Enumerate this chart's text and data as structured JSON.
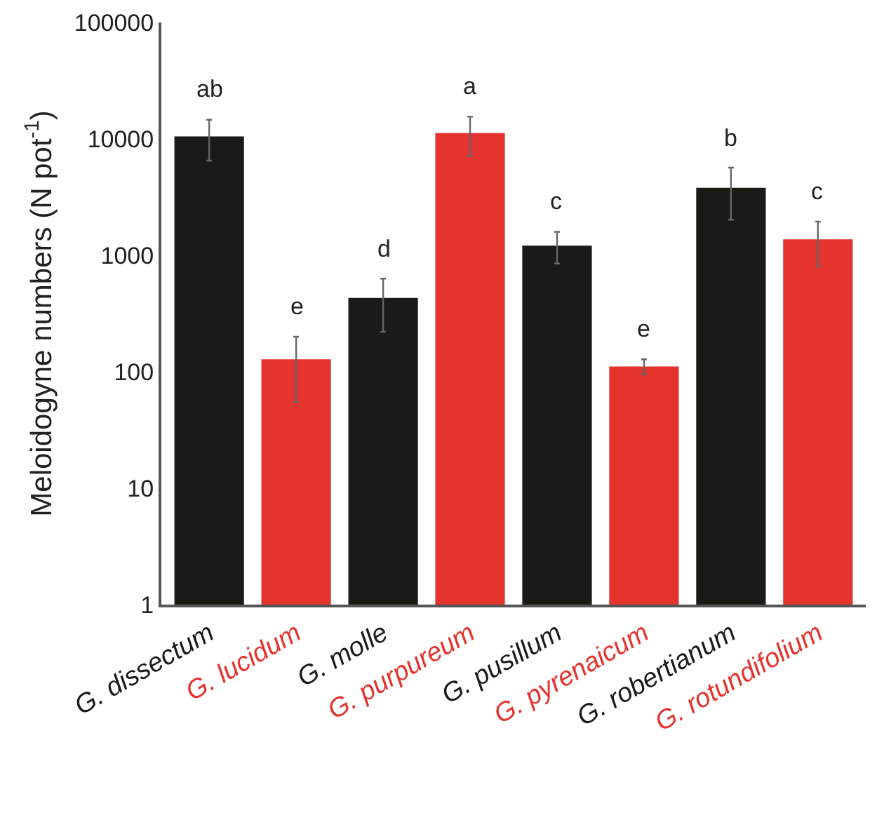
{
  "chart_data": {
    "type": "bar",
    "ylabel": "Meloidogyne numbers (N pot$^{-1}$)",
    "categories": [
      "G. dissectum",
      "G. lucidum",
      "G. molle",
      "G. purpureum",
      "G. pusillum",
      "G. pyrenaicum",
      "G. robertianum",
      "G. rotundifolium"
    ],
    "values": [
      10500,
      128,
      430,
      11200,
      1210,
      111,
      3800,
      1370
    ],
    "colors": [
      "#1a1a17",
      "#e5332d",
      "#1a1a17",
      "#e5332d",
      "#1a1a17",
      "#e5332d",
      "#1a1a17",
      "#e5332d"
    ],
    "errors": [
      [
        6500,
        14600
      ],
      [
        55,
        200
      ],
      [
        220,
        630
      ],
      [
        7100,
        15500
      ],
      [
        850,
        1590
      ],
      [
        95,
        128
      ],
      [
        2020,
        5660
      ],
      [
        800,
        1950
      ]
    ],
    "log": true,
    "ylim": [
      1,
      100000
    ],
    "yticks": [
      1,
      10,
      100,
      1000,
      10000,
      100000
    ],
    "grid": false,
    "annotations": [
      {
        "text": "ab",
        "x": "G. dissectum",
        "y": 14600
      },
      {
        "text": "e",
        "x": "G. lucidum",
        "y": 200
      },
      {
        "text": "d",
        "x": "G. molle",
        "y": 630
      },
      {
        "text": "a",
        "x": "G. purpureum",
        "y": 15500
      },
      {
        "text": "c",
        "x": "G. pusillum",
        "y": 1590
      },
      {
        "text": "e",
        "x": "G. pyrenaicum",
        "y": 128
      },
      {
        "text": "b",
        "x": "G. robertianum",
        "y": 5660
      },
      {
        "text": "c",
        "x": "G. rotundifolium",
        "y": 1950
      }
    ]
  }
}
